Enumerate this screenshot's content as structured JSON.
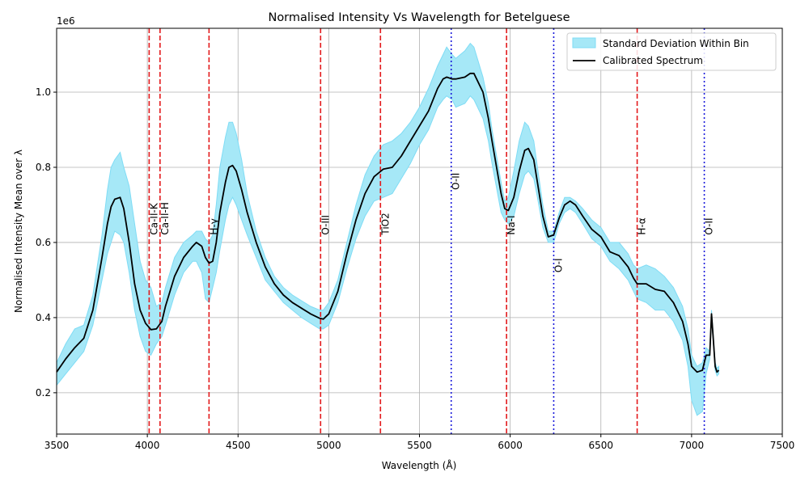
{
  "chart_data": {
    "type": "line",
    "title": "Normalised Intensity Vs Wavelength for Betelguese",
    "xlabel": "Wavelength (Å)",
    "ylabel": "Normalised Intensity Mean over λ",
    "offset_label": "1e6",
    "xlim": [
      3500,
      7500
    ],
    "ylim": [
      0.09,
      1.17
    ],
    "xticks": [
      3500,
      4000,
      4500,
      5000,
      5500,
      6000,
      6500,
      7000,
      7500
    ],
    "yticks": [
      0.2,
      0.4,
      0.6,
      0.8,
      1.0
    ],
    "xtick_labels": [
      "3500",
      "4000",
      "4500",
      "5000",
      "5500",
      "6000",
      "6500",
      "7000",
      "7500"
    ],
    "ytick_labels": [
      "0.2",
      "0.4",
      "0.6",
      "0.8",
      "1.0"
    ],
    "grid": true,
    "legend": {
      "position": "top-right",
      "entries": [
        "Standard Deviation Within Bin",
        "Calibrated Spectrum"
      ]
    },
    "colors": {
      "spectrum": "#000000",
      "band_fill": "#a6e8f7",
      "band_edge": "#7fdcf5",
      "line_red": "#e31a1c",
      "line_blue": "#1a1adb",
      "grid": "#b0b0b0"
    },
    "series": [
      {
        "name": "Calibrated Spectrum",
        "x": [
          3500,
          3550,
          3600,
          3650,
          3700,
          3750,
          3780,
          3800,
          3820,
          3850,
          3870,
          3900,
          3930,
          3960,
          3990,
          4020,
          4050,
          4080,
          4100,
          4150,
          4200,
          4250,
          4270,
          4300,
          4320,
          4340,
          4360,
          4380,
          4400,
          4430,
          4450,
          4470,
          4490,
          4520,
          4550,
          4600,
          4650,
          4700,
          4750,
          4800,
          4850,
          4900,
          4950,
          4970,
          5000,
          5050,
          5100,
          5150,
          5200,
          5250,
          5300,
          5350,
          5400,
          5450,
          5500,
          5550,
          5600,
          5630,
          5650,
          5680,
          5700,
          5750,
          5780,
          5800,
          5850,
          5880,
          5900,
          5950,
          5970,
          5990,
          6020,
          6050,
          6080,
          6100,
          6130,
          6150,
          6180,
          6210,
          6240,
          6270,
          6300,
          6330,
          6360,
          6400,
          6450,
          6500,
          6550,
          6600,
          6650,
          6680,
          6700,
          6750,
          6800,
          6850,
          6900,
          6950,
          6980,
          7000,
          7030,
          7060,
          7080,
          7100,
          7110,
          7120,
          7130,
          7140,
          7150
        ],
        "values": [
          0.255,
          0.29,
          0.32,
          0.345,
          0.42,
          0.56,
          0.65,
          0.695,
          0.715,
          0.72,
          0.69,
          0.6,
          0.49,
          0.42,
          0.385,
          0.368,
          0.37,
          0.39,
          0.43,
          0.51,
          0.56,
          0.59,
          0.6,
          0.59,
          0.56,
          0.545,
          0.55,
          0.6,
          0.68,
          0.76,
          0.8,
          0.805,
          0.79,
          0.74,
          0.68,
          0.6,
          0.535,
          0.49,
          0.46,
          0.44,
          0.425,
          0.41,
          0.398,
          0.396,
          0.41,
          0.47,
          0.57,
          0.66,
          0.73,
          0.775,
          0.795,
          0.8,
          0.83,
          0.87,
          0.91,
          0.95,
          1.01,
          1.035,
          1.04,
          1.035,
          1.035,
          1.04,
          1.05,
          1.05,
          1.0,
          0.93,
          0.87,
          0.73,
          0.69,
          0.685,
          0.72,
          0.79,
          0.845,
          0.85,
          0.82,
          0.76,
          0.67,
          0.615,
          0.62,
          0.665,
          0.7,
          0.71,
          0.7,
          0.67,
          0.635,
          0.615,
          0.575,
          0.565,
          0.535,
          0.505,
          0.49,
          0.49,
          0.475,
          0.47,
          0.44,
          0.39,
          0.33,
          0.27,
          0.255,
          0.26,
          0.3,
          0.3,
          0.41,
          0.34,
          0.27,
          0.255,
          0.26
        ]
      }
    ],
    "band": {
      "name": "Standard Deviation Within Bin",
      "x": [
        3500,
        3550,
        3600,
        3650,
        3700,
        3750,
        3780,
        3800,
        3820,
        3850,
        3870,
        3900,
        3930,
        3960,
        3990,
        4020,
        4050,
        4080,
        4100,
        4150,
        4200,
        4250,
        4270,
        4300,
        4320,
        4340,
        4360,
        4380,
        4400,
        4430,
        4450,
        4470,
        4490,
        4520,
        4550,
        4600,
        4650,
        4700,
        4750,
        4800,
        4850,
        4900,
        4950,
        4970,
        5000,
        5050,
        5100,
        5150,
        5200,
        5250,
        5300,
        5350,
        5400,
        5450,
        5500,
        5550,
        5600,
        5630,
        5650,
        5680,
        5700,
        5750,
        5780,
        5800,
        5850,
        5880,
        5900,
        5950,
        5970,
        5990,
        6020,
        6050,
        6080,
        6100,
        6130,
        6150,
        6180,
        6210,
        6240,
        6270,
        6300,
        6330,
        6360,
        6400,
        6450,
        6500,
        6550,
        6600,
        6650,
        6680,
        6700,
        6750,
        6800,
        6850,
        6900,
        6950,
        6980,
        7000,
        7030,
        7060,
        7080,
        7100,
        7110,
        7120,
        7130,
        7140,
        7150
      ],
      "upper": [
        0.28,
        0.33,
        0.37,
        0.38,
        0.46,
        0.62,
        0.74,
        0.8,
        0.82,
        0.84,
        0.8,
        0.75,
        0.65,
        0.55,
        0.5,
        0.48,
        0.43,
        0.44,
        0.48,
        0.56,
        0.6,
        0.62,
        0.63,
        0.63,
        0.61,
        0.6,
        0.62,
        0.7,
        0.8,
        0.88,
        0.92,
        0.92,
        0.89,
        0.82,
        0.73,
        0.63,
        0.56,
        0.51,
        0.48,
        0.46,
        0.445,
        0.43,
        0.42,
        0.42,
        0.44,
        0.5,
        0.6,
        0.7,
        0.78,
        0.83,
        0.86,
        0.87,
        0.89,
        0.92,
        0.96,
        1.01,
        1.07,
        1.1,
        1.12,
        1.1,
        1.09,
        1.11,
        1.13,
        1.12,
        1.04,
        0.97,
        0.9,
        0.76,
        0.71,
        0.72,
        0.79,
        0.87,
        0.92,
        0.91,
        0.87,
        0.8,
        0.7,
        0.63,
        0.63,
        0.68,
        0.72,
        0.72,
        0.71,
        0.69,
        0.66,
        0.64,
        0.6,
        0.6,
        0.57,
        0.54,
        0.53,
        0.54,
        0.53,
        0.51,
        0.48,
        0.43,
        0.37,
        0.3,
        0.27,
        0.28,
        0.32,
        0.31,
        0.42,
        0.35,
        0.28,
        0.265,
        0.27
      ],
      "lower": [
        0.22,
        0.25,
        0.28,
        0.31,
        0.38,
        0.5,
        0.57,
        0.6,
        0.63,
        0.62,
        0.6,
        0.52,
        0.42,
        0.35,
        0.31,
        0.3,
        0.33,
        0.35,
        0.38,
        0.46,
        0.52,
        0.55,
        0.55,
        0.52,
        0.45,
        0.44,
        0.48,
        0.52,
        0.58,
        0.66,
        0.7,
        0.72,
        0.7,
        0.66,
        0.62,
        0.56,
        0.5,
        0.47,
        0.44,
        0.42,
        0.4,
        0.385,
        0.37,
        0.37,
        0.38,
        0.44,
        0.53,
        0.61,
        0.67,
        0.71,
        0.72,
        0.73,
        0.77,
        0.81,
        0.86,
        0.9,
        0.96,
        0.98,
        0.99,
        0.98,
        0.96,
        0.97,
        0.99,
        0.98,
        0.93,
        0.87,
        0.81,
        0.68,
        0.66,
        0.65,
        0.67,
        0.73,
        0.78,
        0.79,
        0.77,
        0.72,
        0.64,
        0.6,
        0.6,
        0.65,
        0.68,
        0.69,
        0.68,
        0.65,
        0.61,
        0.59,
        0.55,
        0.53,
        0.5,
        0.47,
        0.45,
        0.44,
        0.42,
        0.42,
        0.39,
        0.34,
        0.27,
        0.18,
        0.14,
        0.15,
        0.25,
        0.29,
        0.4,
        0.33,
        0.26,
        0.245,
        0.25
      ]
    },
    "annotations": [
      {
        "label": "Ca-II-K",
        "x": 4010,
        "y": 0.62,
        "style": "dashed",
        "color": "red"
      },
      {
        "label": "Ca-II-H",
        "x": 4070,
        "y": 0.62,
        "style": "dashed",
        "color": "red"
      },
      {
        "label": "H-γ",
        "x": 4340,
        "y": 0.62,
        "style": "dashed",
        "color": "red"
      },
      {
        "label": "O-III",
        "x": 4955,
        "y": 0.62,
        "style": "dashed",
        "color": "red"
      },
      {
        "label": "TiO2",
        "x": 5285,
        "y": 0.62,
        "style": "dashed",
        "color": "red"
      },
      {
        "label": "O-II",
        "x": 5675,
        "y": 0.74,
        "style": "dotted",
        "color": "blue"
      },
      {
        "label": "Na-I",
        "x": 5980,
        "y": 0.62,
        "style": "dashed",
        "color": "red"
      },
      {
        "label": "O-I",
        "x": 6240,
        "y": 0.52,
        "style": "dotted",
        "color": "blue"
      },
      {
        "label": "H-α",
        "x": 6700,
        "y": 0.62,
        "style": "dashed",
        "color": "red"
      },
      {
        "label": "O-II",
        "x": 7070,
        "y": 0.62,
        "style": "dotted",
        "color": "blue"
      }
    ]
  }
}
